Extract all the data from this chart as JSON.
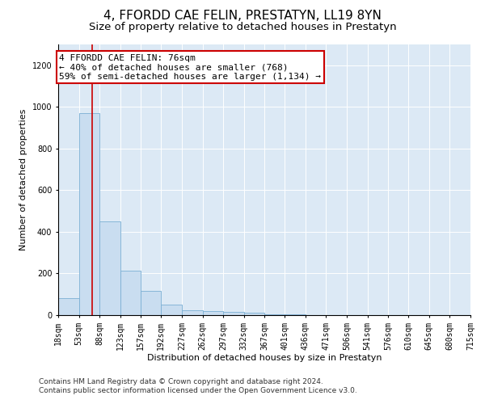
{
  "title": "4, FFORDD CAE FELIN, PRESTATYN, LL19 8YN",
  "subtitle": "Size of property relative to detached houses in Prestatyn",
  "xlabel": "Distribution of detached houses by size in Prestatyn",
  "ylabel": "Number of detached properties",
  "bin_edges": [
    18,
    53,
    88,
    123,
    157,
    192,
    227,
    262,
    297,
    332,
    367,
    401,
    436,
    471,
    506,
    541,
    576,
    610,
    645,
    680,
    715
  ],
  "bar_heights": [
    80,
    970,
    450,
    215,
    115,
    50,
    25,
    20,
    15,
    10,
    5,
    2,
    1,
    0,
    0,
    0,
    0,
    0,
    0,
    0
  ],
  "bar_color": "#c9ddf0",
  "bar_edge_color": "#7bafd4",
  "property_size": 76,
  "annotation_line1": "4 FFORDD CAE FELIN: 76sqm",
  "annotation_line2": "← 40% of detached houses are smaller (768)",
  "annotation_line3": "59% of semi-detached houses are larger (1,134) →",
  "annotation_box_color": "#ffffff",
  "annotation_border_color": "#cc0000",
  "red_line_color": "#cc0000",
  "ylim": [
    0,
    1300
  ],
  "yticks": [
    0,
    200,
    400,
    600,
    800,
    1000,
    1200
  ],
  "background_color": "#ffffff",
  "plot_bg_color": "#dce9f5",
  "footer_line1": "Contains HM Land Registry data © Crown copyright and database right 2024.",
  "footer_line2": "Contains public sector information licensed under the Open Government Licence v3.0.",
  "title_fontsize": 11,
  "subtitle_fontsize": 9.5,
  "axis_label_fontsize": 8,
  "tick_fontsize": 7,
  "annotation_fontsize": 8,
  "footer_fontsize": 6.5
}
